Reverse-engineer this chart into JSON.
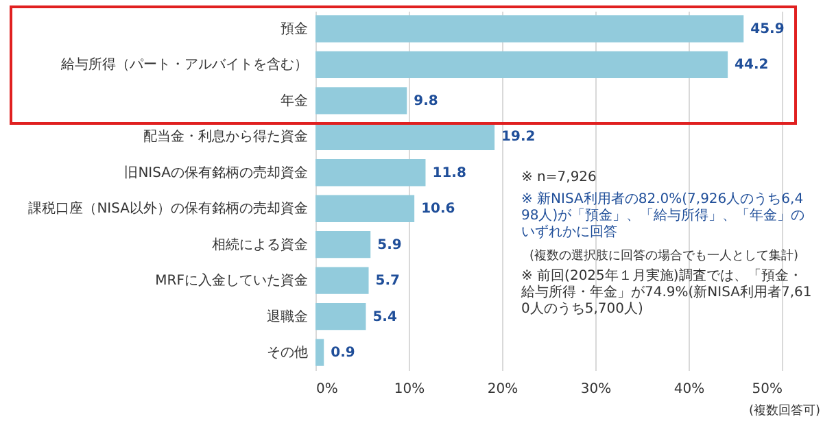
{
  "chart_data": {
    "type": "bar",
    "orientation": "horizontal",
    "categories": [
      "預金",
      "給与所得（パート・アルバイトを含む）",
      "年金",
      "配当金・利息から得た資金",
      "旧NISAの保有銘柄の売却資金",
      "課税口座（NISA以外）の保有銘柄の売却資金",
      "相続による資金",
      "MRFに入金していた資金",
      "退職金",
      "その他"
    ],
    "values": [
      45.9,
      44.2,
      9.8,
      19.2,
      11.8,
      10.6,
      5.9,
      5.7,
      5.4,
      0.9
    ],
    "color": "#92cbdc",
    "data_labels": true,
    "grid": "x",
    "xlim": [
      0,
      50
    ],
    "xticks": [
      {
        "value": 0,
        "label": "0%"
      },
      {
        "value": 10,
        "label": "10%"
      },
      {
        "value": 20,
        "label": "20%"
      },
      {
        "value": 30,
        "label": "30%"
      },
      {
        "value": 40,
        "label": "40%"
      },
      {
        "value": 50,
        "label": "50%"
      }
    ],
    "annotations": [
      "※ n=7,926",
      "※ 新NISA利用者の82.0%(7,926人のうち6,498人)が「預金」、「給与所得」、「年金」のいずれかに回答",
      "(複数の選択肢に回答の場合でも一人として集計)",
      "※ 前回(2025年１月実施)調査では、「預金・給与所得・年金」が74.9%(新NISA利用者7,610人のうち5,700人)",
      "(複数回答可)"
    ]
  }
}
